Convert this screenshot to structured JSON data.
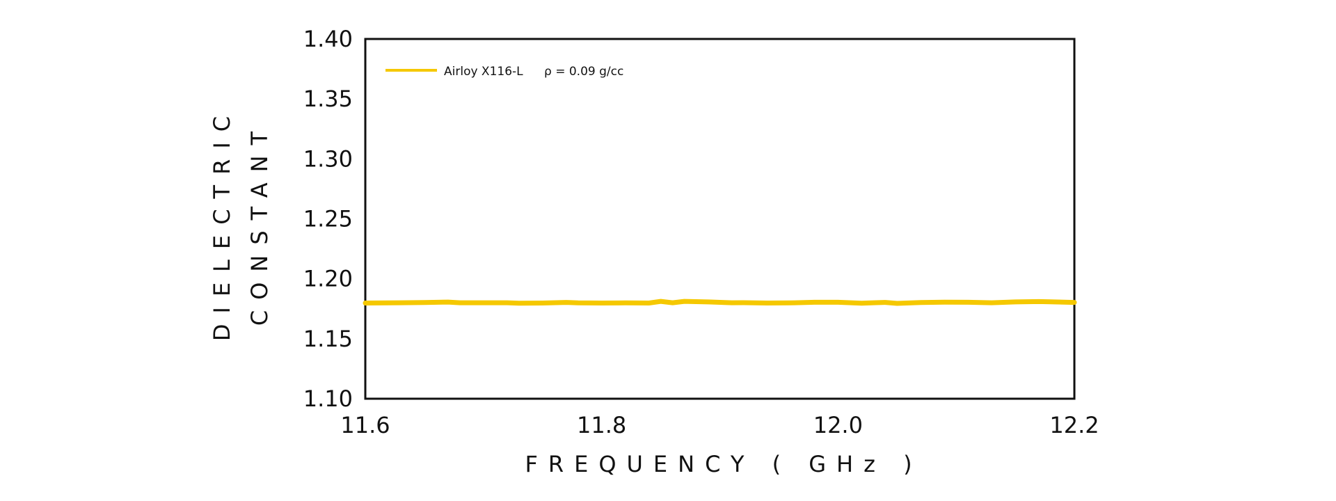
{
  "chart_data": {
    "type": "line",
    "title": "",
    "xlabel": "FREQUENCY ( GHz )",
    "ylabel": [
      "DIELECTRIC",
      "CONSTANT"
    ],
    "xlim": [
      11.6,
      12.2
    ],
    "ylim": [
      1.1,
      1.4
    ],
    "xticks": [
      11.6,
      11.8,
      12.0,
      12.2
    ],
    "xtick_labels": [
      "11.6",
      "11.8",
      "12.0",
      "12.2"
    ],
    "yticks": [
      1.1,
      1.15,
      1.2,
      1.25,
      1.3,
      1.35,
      1.4
    ],
    "ytick_labels": [
      "1.10",
      "1.15",
      "1.20",
      "1.25",
      "1.30",
      "1.35",
      "1.40"
    ],
    "grid": false,
    "legend_position": "top-left",
    "series": [
      {
        "name": "Airloy X116-L",
        "density_label": "ρ = 0.09 g/cc",
        "color": "#F5C800",
        "x": [
          11.6,
          11.63,
          11.65,
          11.67,
          11.68,
          11.7,
          11.72,
          11.73,
          11.75,
          11.77,
          11.78,
          11.8,
          11.82,
          11.84,
          11.85,
          11.86,
          11.87,
          11.89,
          11.91,
          11.92,
          11.94,
          11.96,
          11.98,
          12.0,
          12.02,
          12.03,
          12.04,
          12.05,
          12.07,
          12.09,
          12.11,
          12.13,
          12.15,
          12.17,
          12.18,
          12.2
        ],
        "y": [
          1.1798,
          1.18,
          1.1802,
          1.1806,
          1.18,
          1.18,
          1.18,
          1.1796,
          1.1798,
          1.1803,
          1.1799,
          1.1798,
          1.1799,
          1.1798,
          1.1812,
          1.18,
          1.1812,
          1.1807,
          1.18,
          1.1801,
          1.1798,
          1.1799,
          1.1804,
          1.1804,
          1.1797,
          1.18,
          1.1803,
          1.1795,
          1.1802,
          1.1805,
          1.1804,
          1.18,
          1.1807,
          1.181,
          1.1808,
          1.1803
        ]
      }
    ]
  }
}
